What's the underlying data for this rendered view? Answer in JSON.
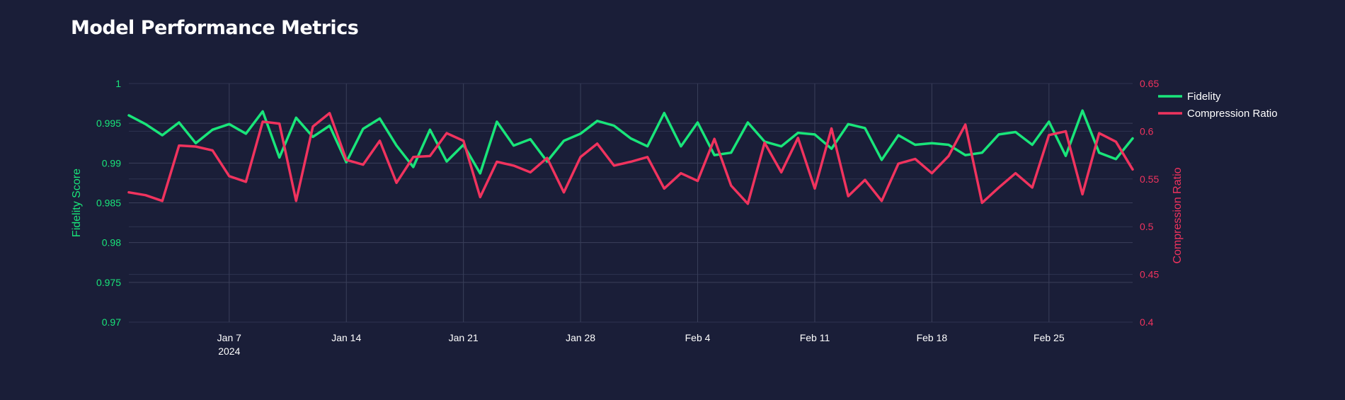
{
  "title": "Model Performance Metrics",
  "chart_data": {
    "type": "line",
    "title": "Model Performance Metrics",
    "x_start": "2024-01-01",
    "x_tick_labels": [
      "Jan 7",
      "Jan 14",
      "Jan 21",
      "Jan 28",
      "Feb 4",
      "Feb 11",
      "Feb 18",
      "Feb 25"
    ],
    "x_year_label": "2024",
    "y_left": {
      "label": "Fidelity Score",
      "range": [
        0.97,
        1.0
      ],
      "ticks": [
        "0.97",
        "0.975",
        "0.98",
        "0.985",
        "0.99",
        "0.995",
        "1"
      ]
    },
    "y_right": {
      "label": "Compression Ratio",
      "range": [
        0.4,
        0.65
      ],
      "ticks": [
        "0.4",
        "0.45",
        "0.5",
        "0.55",
        "0.6",
        "0.65"
      ]
    },
    "legend_position": "top-right",
    "series": [
      {
        "name": "Fidelity",
        "axis": "left",
        "color": "#19e57a",
        "values": [
          0.996,
          0.9949,
          0.9935,
          0.9951,
          0.9925,
          0.9942,
          0.9949,
          0.9937,
          0.9965,
          0.9907,
          0.9957,
          0.9933,
          0.9947,
          0.9901,
          0.9943,
          0.9956,
          0.9922,
          0.9895,
          0.9942,
          0.9902,
          0.9923,
          0.9887,
          0.9952,
          0.9922,
          0.993,
          0.9902,
          0.9928,
          0.9937,
          0.9953,
          0.9947,
          0.9931,
          0.9921,
          0.9963,
          0.9921,
          0.9951,
          0.991,
          0.9913,
          0.9951,
          0.9927,
          0.9921,
          0.9938,
          0.9936,
          0.9918,
          0.9949,
          0.9944,
          0.9904,
          0.9935,
          0.9923,
          0.9925,
          0.9923,
          0.991,
          0.9913,
          0.9936,
          0.9939,
          0.9923,
          0.9952,
          0.9909,
          0.9966,
          0.9913,
          0.9905,
          0.9931
        ]
      },
      {
        "name": "Compression Ratio",
        "axis": "right",
        "color": "#f0335e",
        "values": [
          0.536,
          0.533,
          0.527,
          0.585,
          0.584,
          0.58,
          0.553,
          0.547,
          0.61,
          0.608,
          0.527,
          0.605,
          0.619,
          0.57,
          0.565,
          0.59,
          0.546,
          0.573,
          0.574,
          0.598,
          0.59,
          0.531,
          0.568,
          0.564,
          0.557,
          0.572,
          0.536,
          0.573,
          0.587,
          0.564,
          0.568,
          0.573,
          0.54,
          0.556,
          0.548,
          0.592,
          0.543,
          0.524,
          0.588,
          0.557,
          0.593,
          0.54,
          0.603,
          0.532,
          0.549,
          0.527,
          0.566,
          0.571,
          0.556,
          0.574,
          0.607,
          0.525,
          0.541,
          0.556,
          0.541,
          0.596,
          0.6,
          0.534,
          0.598,
          0.589,
          0.56
        ]
      }
    ]
  }
}
